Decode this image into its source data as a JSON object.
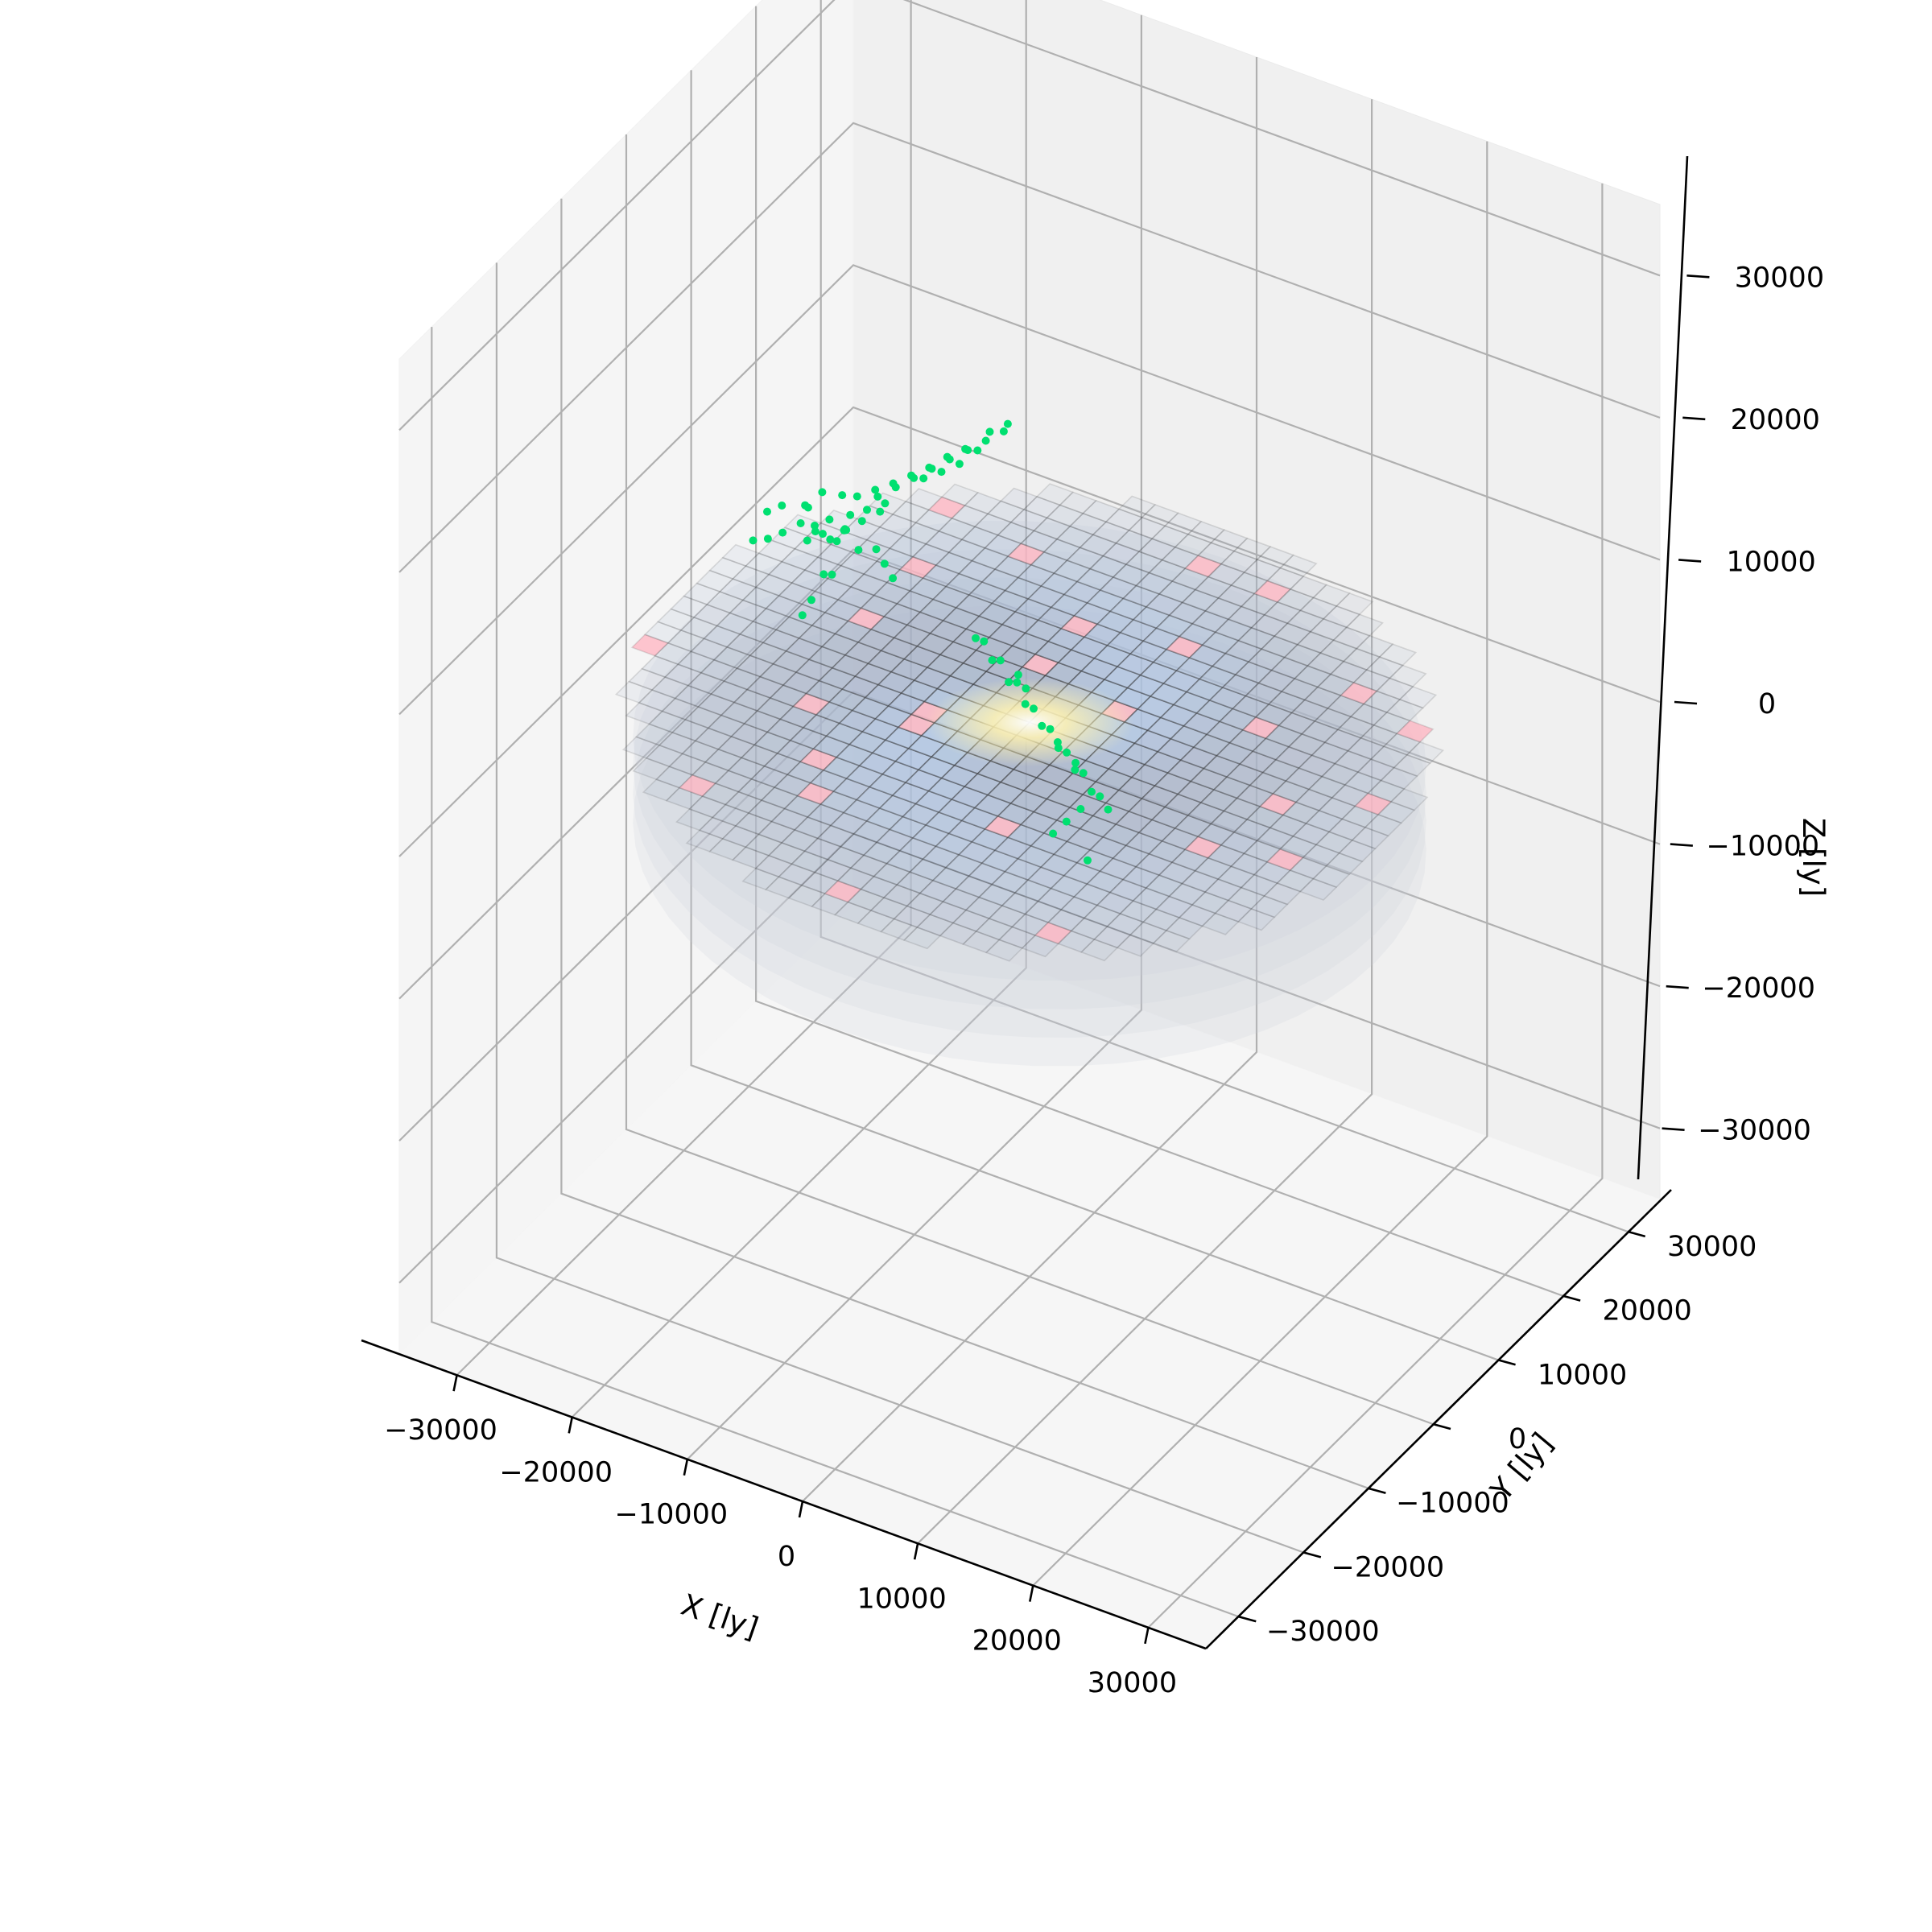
{
  "chart_data": {
    "type": "scatter",
    "projection": "3d",
    "title": "",
    "xlabel": "X [ly]",
    "ylabel": "Y [ly]",
    "zlabel": "Z [ly]",
    "xlim": [
      -35000,
      35000
    ],
    "ylim": [
      -35000,
      35000
    ],
    "zlim": [
      -35000,
      35000
    ],
    "grid": true,
    "x_ticks": [
      -30000,
      -20000,
      -10000,
      0,
      10000,
      20000,
      30000
    ],
    "y_ticks": [
      -30000,
      -20000,
      -10000,
      0,
      10000,
      20000,
      30000
    ],
    "z_ticks": [
      -30000,
      -20000,
      -10000,
      0,
      10000,
      20000,
      30000
    ],
    "x_tick_labels": [
      "−30000",
      "−20000",
      "−10000",
      "0",
      "10000",
      "20000",
      "30000"
    ],
    "y_tick_labels": [
      "−30000",
      "−20000",
      "−10000",
      "0",
      "10000",
      "20000",
      "30000"
    ],
    "z_tick_labels": [
      "−30000",
      "−20000",
      "−10000",
      "0",
      "10000",
      "20000",
      "30000"
    ],
    "galaxy_disk": {
      "description_type": "voxel_grid",
      "radius": 30000,
      "z_range": [
        -4000,
        4000
      ],
      "cell_size": 2000,
      "core_color": "#fff2b0",
      "arm_color": "#a9c7ee",
      "hot_spot_color": "#ffb3c0",
      "grid_line_color": "#333333"
    },
    "series": [
      {
        "color": "#00e070",
        "marker_size": 5,
        "points": [
          [
            -30000,
            18000,
            1000
          ],
          [
            -29000,
            18500,
            500
          ],
          [
            -28500,
            17500,
            1500
          ],
          [
            -28000,
            19000,
            0
          ],
          [
            -27500,
            18000,
            2000
          ],
          [
            -27000,
            19500,
            800
          ],
          [
            -26500,
            18800,
            1200
          ],
          [
            -26000,
            19800,
            -500
          ],
          [
            -31000,
            17000,
            500
          ],
          [
            -32000,
            16500,
            0
          ],
          [
            -33000,
            16000,
            -200
          ],
          [
            -29500,
            17800,
            2500
          ],
          [
            -28800,
            19200,
            3000
          ],
          [
            -27800,
            20500,
            2500
          ],
          [
            -25000,
            21000,
            3000
          ],
          [
            -24000,
            22000,
            3500
          ],
          [
            -23000,
            23000,
            4000
          ],
          [
            -22000,
            24000,
            4500
          ],
          [
            -21000,
            25000,
            5000
          ],
          [
            -20000,
            26000,
            5500
          ],
          [
            -19000,
            27000,
            6000
          ],
          [
            -22500,
            24500,
            4200
          ],
          [
            -23500,
            23500,
            3800
          ],
          [
            -21500,
            25500,
            4800
          ],
          [
            -20500,
            26500,
            5200
          ],
          [
            -24500,
            22500,
            3400
          ],
          [
            -25500,
            21500,
            3100
          ],
          [
            -26500,
            20500,
            2800
          ],
          [
            -18000,
            28000,
            6500
          ],
          [
            -28000,
            18000,
            -2000
          ],
          [
            -28500,
            17000,
            -3500
          ],
          [
            -29000,
            16500,
            -4500
          ],
          [
            -27000,
            17500,
            -1500
          ],
          [
            -24000,
            19000,
            500
          ],
          [
            -23000,
            18500,
            0
          ],
          [
            -22000,
            18000,
            -500
          ],
          [
            -30500,
            16000,
            3000
          ],
          [
            -31500,
            15500,
            2500
          ],
          [
            -29800,
            18800,
            1800
          ],
          [
            -26800,
            19000,
            1000
          ],
          [
            -25800,
            20000,
            1500
          ],
          [
            -24800,
            21000,
            2000
          ],
          [
            -21000,
            26500,
            4000
          ],
          [
            -20000,
            27500,
            4800
          ],
          [
            -22000,
            25500,
            3600
          ],
          [
            -23000,
            24500,
            3300
          ],
          [
            -19500,
            28500,
            5800
          ],
          [
            -18500,
            29500,
            6200
          ],
          [
            -27200,
            18600,
            300
          ],
          [
            -28200,
            18200,
            700
          ],
          [
            -29200,
            17600,
            200
          ],
          [
            -26200,
            18900,
            2300
          ],
          [
            -25200,
            19700,
            2600
          ],
          [
            -24200,
            20700,
            2900
          ],
          [
            -10000,
            12000,
            0
          ],
          [
            -8000,
            11000,
            -500
          ],
          [
            -6000,
            10000,
            -1000
          ],
          [
            -4000,
            9000,
            -1500
          ],
          [
            -2000,
            8000,
            -2000
          ],
          [
            0,
            7000,
            -2500
          ],
          [
            2000,
            6000,
            -3000
          ],
          [
            -9000,
            11500,
            500
          ],
          [
            -7000,
            10500,
            0
          ],
          [
            -5000,
            9500,
            -800
          ],
          [
            -3000,
            8500,
            -1200
          ],
          [
            -1000,
            7500,
            -1800
          ],
          [
            1000,
            6500,
            -2200
          ],
          [
            3000,
            5500,
            -2800
          ],
          [
            -12000,
            13000,
            500
          ],
          [
            -11000,
            12500,
            800
          ],
          [
            4000,
            5000,
            -3200
          ],
          [
            1500,
            5200,
            -4000
          ],
          [
            500,
            4800,
            -5000
          ],
          [
            -500,
            4500,
            -6000
          ],
          [
            2500,
            4500,
            -7000
          ],
          [
            -6500,
            9800,
            1000
          ],
          [
            -5500,
            9200,
            600
          ],
          [
            -1500,
            7000,
            -1000
          ],
          [
            500,
            6200,
            -1500
          ]
        ]
      }
    ]
  }
}
